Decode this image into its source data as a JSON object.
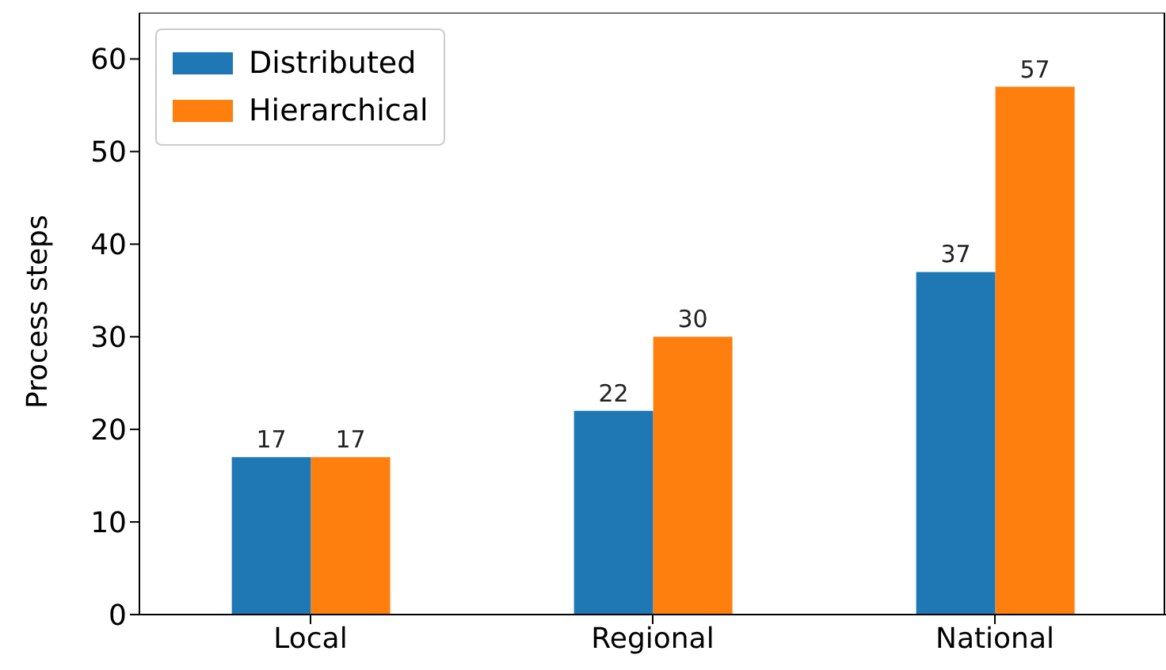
{
  "chart_data": {
    "type": "bar",
    "ylabel": "Process steps",
    "categories": [
      "Local",
      "Regional",
      "National"
    ],
    "series": [
      {
        "name": "Distributed",
        "color": "#1f77b4",
        "values": [
          17,
          22,
          37
        ]
      },
      {
        "name": "Hierarchical",
        "color": "#ff7f0e",
        "values": [
          17,
          30,
          57
        ]
      }
    ],
    "ylim": [
      0,
      65
    ],
    "yticks": [
      0,
      10,
      20,
      30,
      40,
      50,
      60
    ],
    "data_labels": true,
    "legend": "top left",
    "grid": false
  }
}
